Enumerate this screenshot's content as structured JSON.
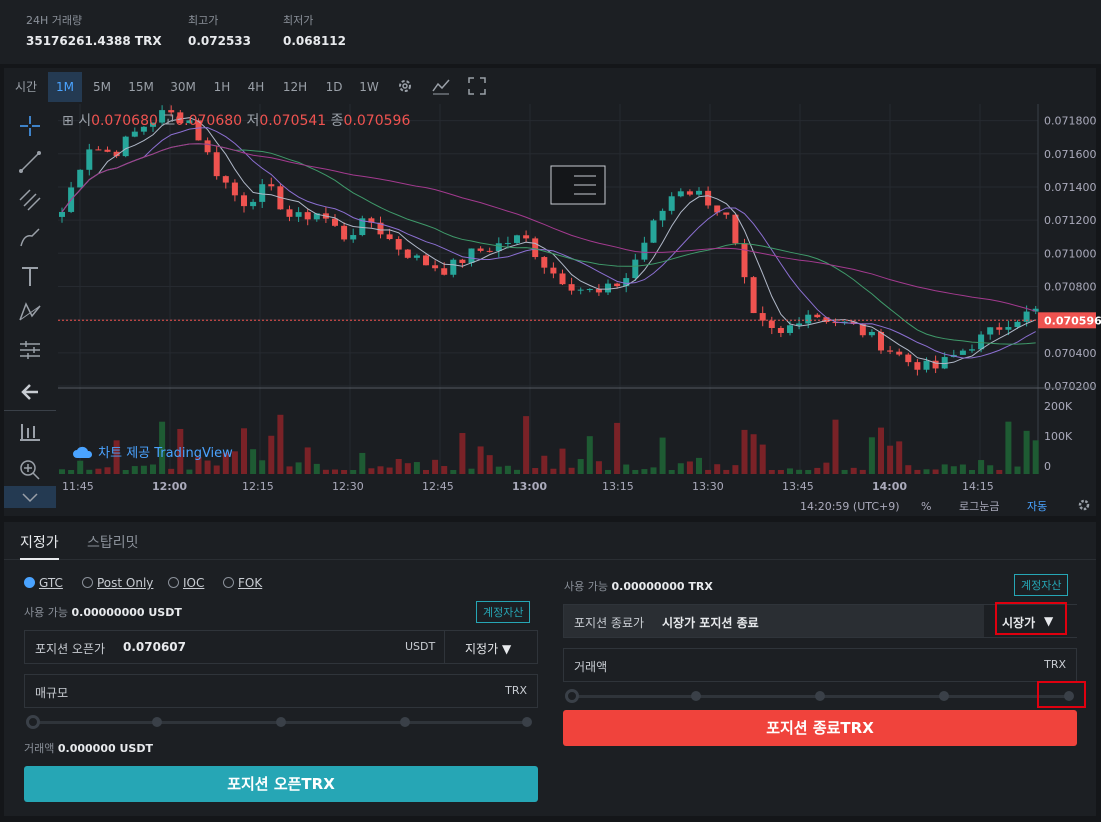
{
  "stats": [
    {
      "label": "24H 거래량",
      "value": "35176261.4388 TRX"
    },
    {
      "label": "최고가",
      "value": "0.072533"
    },
    {
      "label": "최저가",
      "value": "0.068112"
    }
  ],
  "toolbar": {
    "time_label": "시간",
    "intervals": [
      "1M",
      "5M",
      "15M",
      "30M",
      "1H",
      "4H",
      "12H",
      "1D",
      "1W"
    ],
    "active_interval": "1M",
    "icons": [
      "gear-icon",
      "indicator-icon",
      "fullscreen-icon"
    ]
  },
  "tools": [
    "crosshair-icon",
    "trendline-icon",
    "fib-icon",
    "brush-icon",
    "text-icon",
    "pattern-icon",
    "measure-icon",
    "back-arrow-icon",
    "candles-icon",
    "zoom-icon",
    "chevron-down-icon"
  ],
  "ohlc": {
    "o_label": "시",
    "o": "0.070680",
    "h_label": "고",
    "h": "0.070680",
    "l_label": "저",
    "l": "0.070541",
    "c_label": "종",
    "c": "0.070596"
  },
  "watermark": "차트 제공 TradingView",
  "chart_data": {
    "type": "candlestick",
    "price_ticks": [
      "0.071800",
      "0.071600",
      "0.071400",
      "0.071200",
      "0.071000",
      "0.070800",
      "0.070600",
      "0.070400",
      "0.070200"
    ],
    "volume_ticks": [
      "200K",
      "100K",
      "0"
    ],
    "time_ticks": [
      "11:45",
      "12:00",
      "12:15",
      "12:30",
      "12:45",
      "13:00",
      "13:15",
      "13:30",
      "13:45",
      "14:00",
      "14:15"
    ],
    "last_price": "0.070596",
    "ylim": [
      0.0702,
      0.0719
    ],
    "close_path": [
      0.07125,
      0.07165,
      0.0716,
      0.07175,
      0.07185,
      0.0718,
      0.0715,
      0.0713,
      0.0714,
      0.0712,
      0.07125,
      0.0711,
      0.0712,
      0.07105,
      0.07095,
      0.0709,
      0.071,
      0.07105,
      0.0711,
      0.0709,
      0.0708,
      0.07075,
      0.07085,
      0.07115,
      0.0714,
      0.07135,
      0.0712,
      0.0706,
      0.0705,
      0.07065,
      0.0706,
      0.07055,
      0.07045,
      0.07035,
      0.0703,
      0.0704,
      0.0705,
      0.0706,
      0.07065
    ]
  },
  "bottom_bar": {
    "time": "14:20:59 (UTC+9)",
    "pct": "%",
    "log": "로그눈금",
    "auto": "자동"
  },
  "order": {
    "tabs": [
      "지정가",
      "스탑리밋"
    ],
    "radios": [
      "GTC",
      "Post Only",
      "IOC",
      "FOK"
    ],
    "left": {
      "available": "사용 가능",
      "available_val": "0.00000000 USDT",
      "account_btn": "계정자산",
      "open_price_label": "포지션 오픈가",
      "open_price_val": "0.070607",
      "open_price_unit": "USDT",
      "order_type": "지정가",
      "size_label": "매규모",
      "size_unit": "TRX",
      "amount": "거래액",
      "amount_val": "0.000000 USDT",
      "submit": "포지션 오픈TRX"
    },
    "right": {
      "available": "사용 가능",
      "available_val": "0.00000000 TRX",
      "account_btn": "계정자산",
      "close_price_label": "포지션 종료가",
      "close_price_val": "시장가 포지션 종료",
      "order_type": "시장가",
      "amount_label": "거래액",
      "amount_unit": "TRX",
      "submit": "포지션 종료TRX"
    }
  },
  "colors": {
    "up": "#26a69a",
    "down": "#ef5350",
    "accent": "#26a6b5",
    "sell": "#f0433c"
  }
}
